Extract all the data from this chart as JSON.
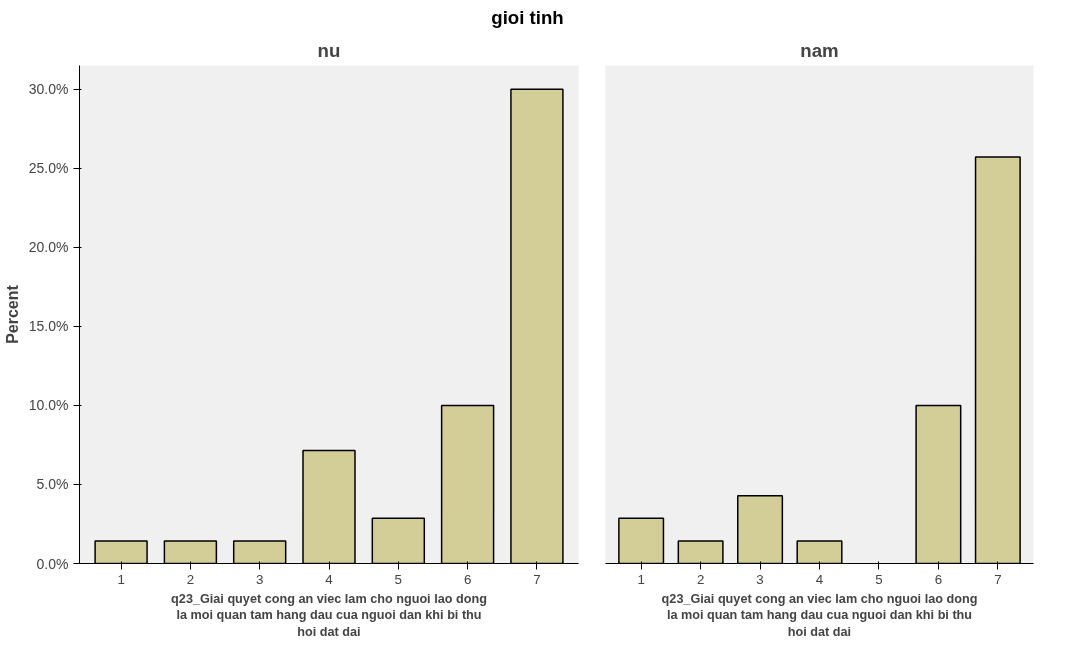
{
  "chart_data": [
    {
      "type": "bar",
      "title": "nu",
      "ylabel": "Percent",
      "xlabel": "q23_Giai quyet cong an viec lam cho nguoi lao dong la moi quan tam hang dau cua nguoi dan khi bi thu hoi dat dai",
      "annotations": [
        "gioi tinh"
      ],
      "categories": [
        "1",
        "2",
        "3",
        "4",
        "5",
        "6",
        "7"
      ],
      "series": [
        {
          "color": "#d3ce97",
          "values": [
            1.43,
            1.43,
            1.43,
            7.14,
            2.86,
            10.0,
            30.0
          ]
        }
      ],
      "ylim": [
        0,
        31.5
      ],
      "yticks": [
        {
          "value": 0,
          "label": "0.0%"
        },
        {
          "value": 5,
          "label": "5.0%"
        },
        {
          "value": 10,
          "label": "10.0%"
        },
        {
          "value": 15,
          "label": "15.0%"
        },
        {
          "value": 20,
          "label": "20.0%"
        },
        {
          "value": 25,
          "label": "25.0%"
        },
        {
          "value": 30,
          "label": "30.0%"
        }
      ],
      "grid": false
    },
    {
      "type": "bar",
      "title": "nam",
      "xlabel": "q23_Giai quyet cong an viec lam cho nguoi lao dong la moi quan tam hang dau cua nguoi dan khi bi thu hoi dat dai",
      "categories": [
        "1",
        "2",
        "3",
        "4",
        "5",
        "6",
        "7"
      ],
      "series": [
        {
          "color": "#d3ce97",
          "values": [
            2.86,
            1.43,
            4.29,
            1.43,
            null,
            10.0,
            25.71
          ]
        }
      ],
      "ylim": [
        0,
        31.5
      ],
      "tick_labels": "x",
      "grid": false
    }
  ]
}
